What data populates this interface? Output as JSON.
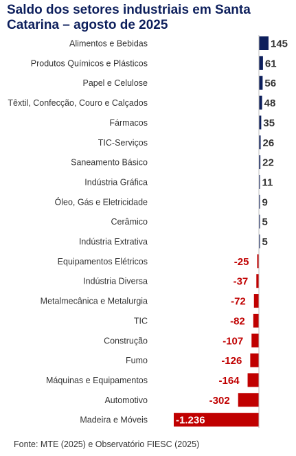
{
  "chart_data": {
    "type": "bar",
    "orientation": "horizontal",
    "title": "Saldo dos setores industriais em Santa Catarina – agosto de 2025",
    "source": "Fonte: MTE (2025) e Observatório FIESC (2025)",
    "colors": {
      "positive": "#0d1f5c",
      "negative": "#c00000",
      "label_text": "#333333"
    },
    "categories": [
      "Alimentos e Bebidas",
      "Produtos Químicos e Plásticos",
      "Papel e Celulose",
      "Têxtil, Confecção, Couro e Calçados",
      "Fármacos",
      "TIC-Serviços",
      "Saneamento Básico",
      "Indústria Gráfica",
      "Óleo, Gás e Eletricidade",
      "Cerâmico",
      "Indústria Extrativa",
      "Equipamentos Elétricos",
      "Indústria Diversa",
      "Metalmecânica e Metalurgia",
      "TIC",
      "Construção",
      "Fumo",
      "Máquinas e Equipamentos",
      "Automotivo",
      "Madeira e Móveis"
    ],
    "values": [
      145,
      61,
      56,
      48,
      35,
      26,
      22,
      11,
      9,
      5,
      5,
      -25,
      -37,
      -72,
      -82,
      -107,
      -126,
      -164,
      -302,
      -1236
    ],
    "value_labels": [
      "145",
      "61",
      "56",
      "48",
      "35",
      "26",
      "22",
      "11",
      "9",
      "5",
      "5",
      "-25",
      "-37",
      "-72",
      "-82",
      "-107",
      "-126",
      "-164",
      "-302",
      "-1.236"
    ]
  }
}
